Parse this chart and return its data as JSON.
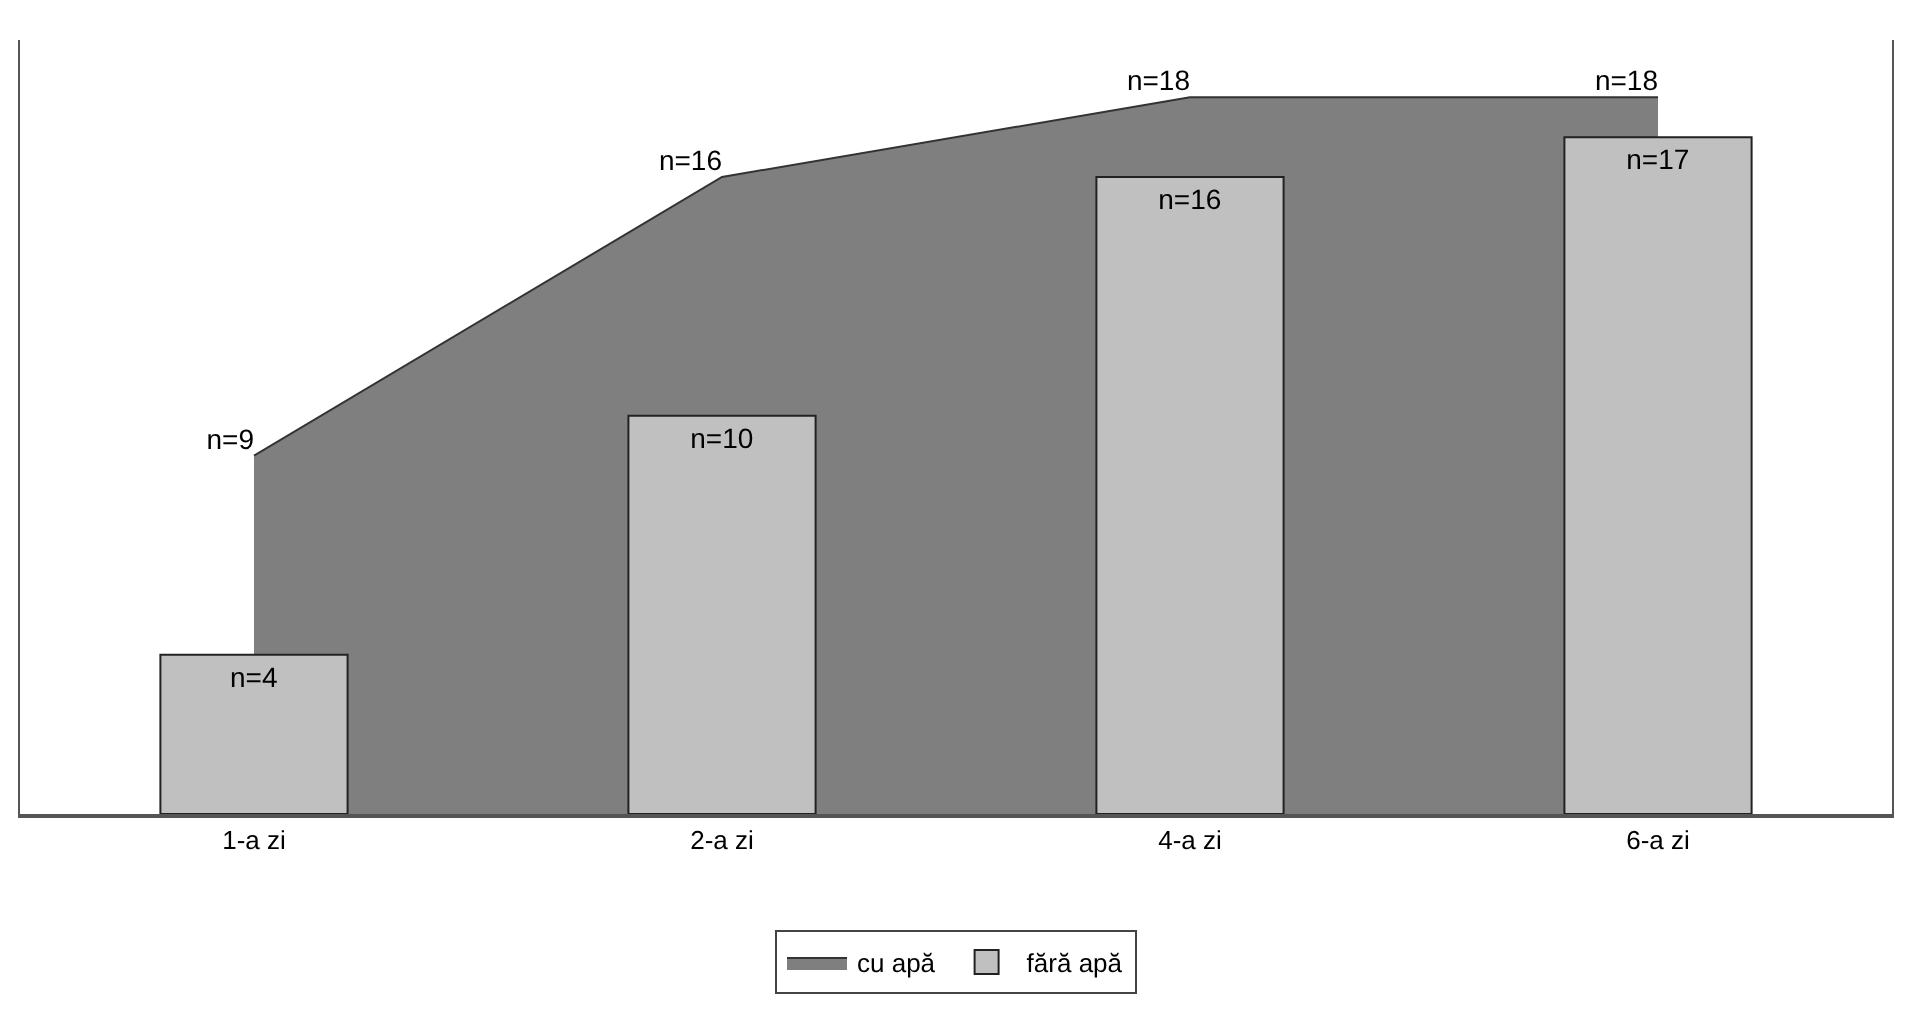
{
  "chart_data": {
    "type": "bar",
    "categories": [
      "1-a zi",
      "2-a zi",
      "4-a zi",
      "6-a zi"
    ],
    "series": [
      {
        "name": "cu apă",
        "type": "area",
        "color": "#7f7f7f",
        "values": [
          9,
          16,
          18,
          18
        ],
        "value_labels": [
          "n=9",
          "n=16",
          "n=18",
          "n=18"
        ]
      },
      {
        "name": "fără apă",
        "color": "#c0c0c0",
        "values": [
          4,
          10,
          16,
          17
        ],
        "value_labels": [
          "n=4",
          "n=10",
          "n=16",
          "n=17"
        ]
      }
    ],
    "legend": "bottom",
    "tick_labels": "x"
  }
}
